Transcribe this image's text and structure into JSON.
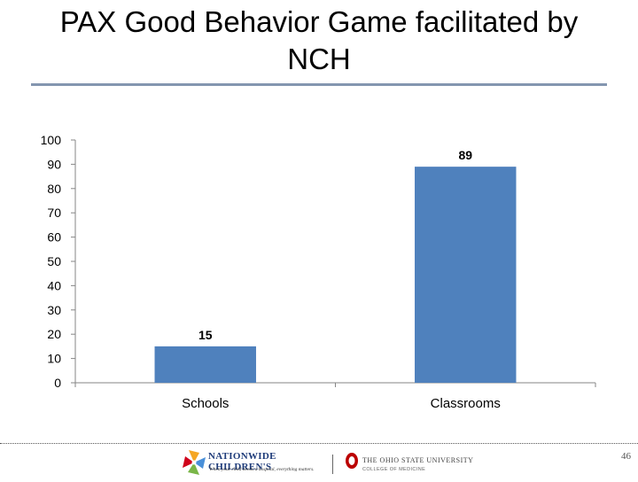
{
  "slide": {
    "title": "PAX Good Behavior Game facilitated by NCH",
    "page_number": "46"
  },
  "chart_data": {
    "type": "bar",
    "categories": [
      "Schools",
      "Classrooms"
    ],
    "values": [
      15,
      89
    ],
    "data_labels": [
      "15",
      "89"
    ],
    "ylim": [
      0,
      100
    ],
    "yticks": [
      0,
      10,
      20,
      30,
      40,
      50,
      60,
      70,
      80,
      90,
      100
    ],
    "xlabel": "",
    "ylabel": "",
    "grid": false,
    "legend": "none",
    "bar_color": "#4f81bd"
  },
  "footer": {
    "nch_logo_text": "NATIONWIDE CHILDREN'S",
    "nch_tagline": "When your child needs a hospital, everything matters.",
    "osu_logo_text": "THE OHIO STATE UNIVERSITY",
    "osu_sub": "COLLEGE OF MEDICINE"
  }
}
